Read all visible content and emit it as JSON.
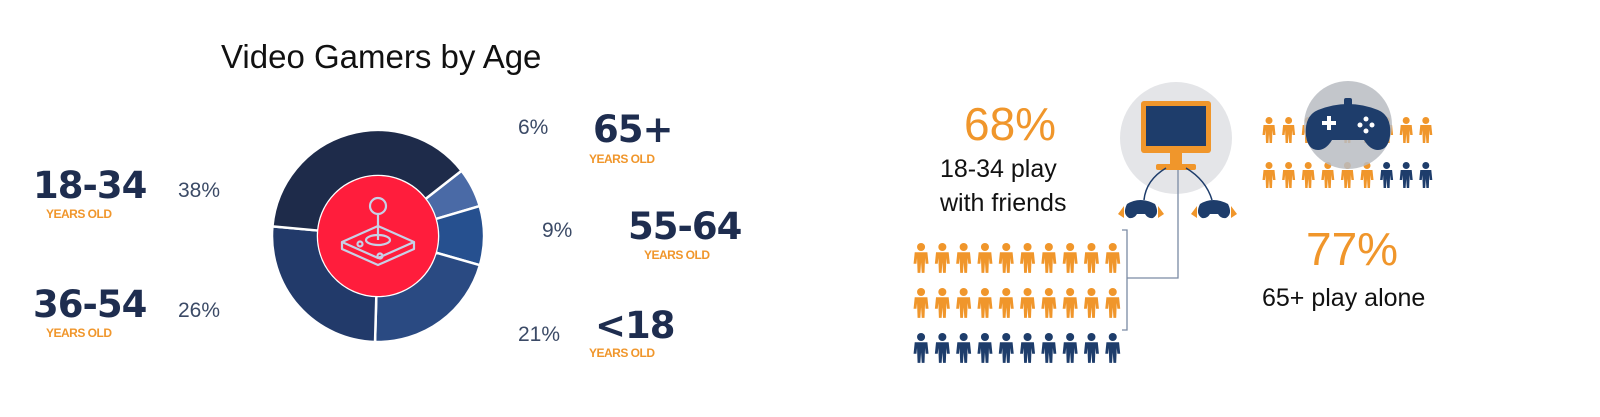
{
  "title": "Video Gamers by Age",
  "chart_data": {
    "type": "pie",
    "title": "Video Gamers by Age",
    "categories": [
      "18-34",
      "36-54",
      "<18",
      "55-64",
      "65+"
    ],
    "values": [
      38,
      26,
      21,
      9,
      6
    ],
    "labels": [
      {
        "age": "18-34",
        "sub": "YEARS OLD",
        "pct": "38%"
      },
      {
        "age": "36-54",
        "sub": "YEARS OLD",
        "pct": "26%"
      },
      {
        "age": "<18",
        "sub": "YEARS OLD",
        "pct": "21%"
      },
      {
        "age": "55-64",
        "sub": "YEARS OLD",
        "pct": "9%"
      },
      {
        "age": "65+",
        "sub": "YEARS OLD",
        "pct": "6%"
      }
    ],
    "colors": [
      "#1e2b4a",
      "#223a6a",
      "#2a4a82",
      "#26508f",
      "#4a6aa6"
    ],
    "center_color": "#ff1d3c",
    "center_icon": "joystick-icon"
  },
  "stats": {
    "friends": {
      "percent": "68%",
      "line1": "18-34 play",
      "line2": "with friends",
      "share": 0.68
    },
    "alone": {
      "percent": "77%",
      "line1": "65+ play alone",
      "share": 0.77
    }
  },
  "colors": {
    "orange": "#f0962b",
    "navy": "#1e3d6b",
    "label_orange": "#f0962b",
    "label_navy": "#1e2d4f"
  },
  "icons": [
    "monitor-icon",
    "gamepad-icon",
    "person-icon"
  ]
}
